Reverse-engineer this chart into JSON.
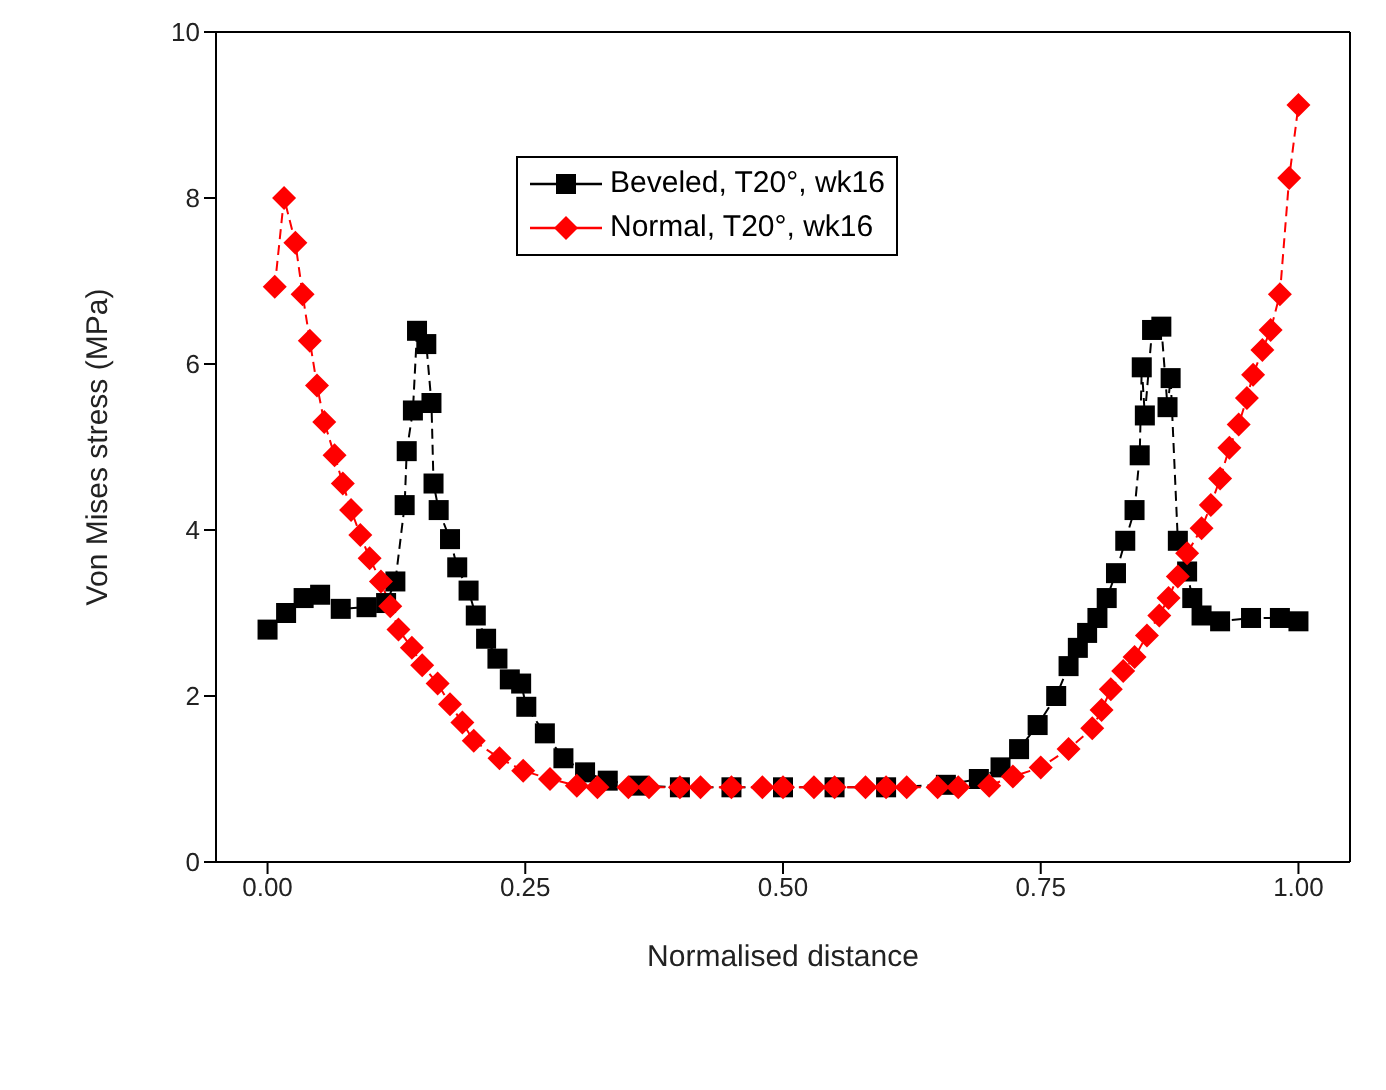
{
  "chart_data": {
    "type": "line",
    "xlabel": "Normalised distance",
    "ylabel": "Von Mises stress (MPa)",
    "xlim": [
      -0.05,
      1.05
    ],
    "xticks": [
      {
        "value": 0,
        "label": "0.00"
      },
      {
        "value": 0.25,
        "label": "0.25"
      },
      {
        "value": 0.5,
        "label": "0.50"
      },
      {
        "value": 0.75,
        "label": "0.75"
      },
      {
        "value": 1,
        "label": "1.00"
      }
    ],
    "ylim": [
      0,
      10
    ],
    "yticks": [
      0,
      2,
      4,
      6,
      8,
      10
    ],
    "legend": "top",
    "line_style": "dashed",
    "series": [
      {
        "name": "Beveled, T20°, wk16",
        "color": "#000000",
        "marker": "square",
        "x": [
          0,
          0.018,
          0.035,
          0.051,
          0.071,
          0.096,
          0.115,
          0.124,
          0.133,
          0.135,
          0.141,
          0.145,
          0.154,
          0.159,
          0.161,
          0.166,
          0.177,
          0.184,
          0.195,
          0.202,
          0.212,
          0.223,
          0.235,
          0.246,
          0.251,
          0.269,
          0.287,
          0.308,
          0.33,
          0.36,
          0.4,
          0.45,
          0.5,
          0.55,
          0.6,
          0.658,
          0.69,
          0.711,
          0.729,
          0.747,
          0.765,
          0.777,
          0.786,
          0.795,
          0.805,
          0.814,
          0.823,
          0.832,
          0.841,
          0.846,
          0.848,
          0.851,
          0.858,
          0.867,
          0.873,
          0.876,
          0.883,
          0.892,
          0.897,
          0.906,
          0.924,
          0.954,
          0.982,
          1.0
        ],
        "values": [
          2.8,
          3.0,
          3.18,
          3.22,
          3.05,
          3.07,
          3.12,
          3.38,
          4.3,
          4.95,
          5.44,
          6.4,
          6.24,
          5.53,
          4.56,
          4.24,
          3.89,
          3.55,
          3.27,
          2.97,
          2.69,
          2.45,
          2.2,
          2.15,
          1.87,
          1.55,
          1.25,
          1.08,
          0.98,
          0.92,
          0.9,
          0.9,
          0.9,
          0.9,
          0.9,
          0.93,
          1.0,
          1.14,
          1.36,
          1.65,
          2.0,
          2.36,
          2.58,
          2.76,
          2.94,
          3.18,
          3.48,
          3.87,
          4.24,
          4.9,
          5.96,
          5.38,
          6.41,
          6.45,
          5.48,
          5.83,
          3.87,
          3.5,
          3.18,
          2.97,
          2.9,
          2.94,
          2.94,
          2.9
        ]
      },
      {
        "name": "Normal, T20°, wk16",
        "color": "#ff0000",
        "marker": "diamond",
        "x": [
          0.007,
          0.016,
          0.027,
          0.034,
          0.041,
          0.048,
          0.055,
          0.065,
          0.073,
          0.081,
          0.09,
          0.099,
          0.11,
          0.119,
          0.127,
          0.14,
          0.15,
          0.165,
          0.177,
          0.189,
          0.2,
          0.225,
          0.248,
          0.274,
          0.3,
          0.32,
          0.35,
          0.37,
          0.4,
          0.42,
          0.45,
          0.48,
          0.5,
          0.53,
          0.55,
          0.58,
          0.6,
          0.62,
          0.65,
          0.67,
          0.7,
          0.723,
          0.75,
          0.777,
          0.8,
          0.809,
          0.818,
          0.83,
          0.841,
          0.853,
          0.865,
          0.874,
          0.883,
          0.892,
          0.906,
          0.915,
          0.924,
          0.933,
          0.942,
          0.95,
          0.956,
          0.965,
          0.973,
          0.982,
          0.991,
          1.0
        ],
        "values": [
          6.93,
          8.0,
          7.46,
          6.84,
          6.28,
          5.74,
          5.3,
          4.9,
          4.56,
          4.24,
          3.94,
          3.66,
          3.38,
          3.08,
          2.8,
          2.58,
          2.37,
          2.15,
          1.9,
          1.68,
          1.46,
          1.25,
          1.1,
          1.0,
          0.92,
          0.9,
          0.9,
          0.9,
          0.9,
          0.9,
          0.9,
          0.9,
          0.9,
          0.9,
          0.9,
          0.9,
          0.9,
          0.9,
          0.9,
          0.9,
          0.92,
          1.03,
          1.14,
          1.36,
          1.61,
          1.83,
          2.08,
          2.3,
          2.47,
          2.73,
          2.97,
          3.18,
          3.44,
          3.72,
          4.02,
          4.3,
          4.62,
          4.99,
          5.27,
          5.59,
          5.87,
          6.17,
          6.41,
          6.84,
          8.24,
          9.12
        ]
      }
    ]
  }
}
